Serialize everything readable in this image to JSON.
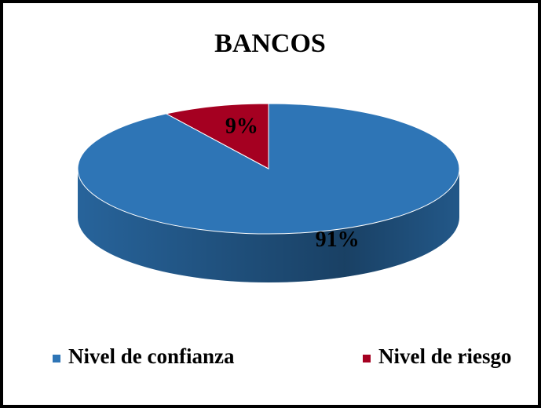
{
  "chart_data": {
    "type": "pie",
    "title": "BANCOS",
    "categories": [
      "Nivel de confianza",
      "Nivel de riesgo"
    ],
    "values": [
      91,
      9
    ],
    "value_labels": [
      "91%",
      "9%"
    ],
    "colors": [
      "#2e75b6",
      "#a50021"
    ],
    "legend": "bottom"
  }
}
